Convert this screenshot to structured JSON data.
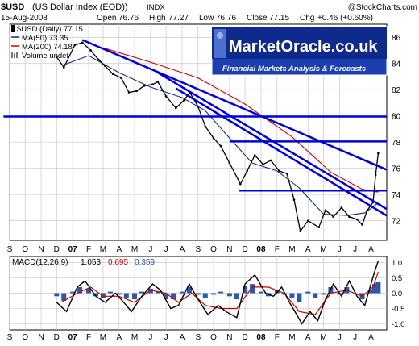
{
  "header": {
    "symbol": "$USD",
    "name": "(US Dollar Index (EOD))",
    "exchange": "INDX",
    "copyright": "@StockCharts.com",
    "date": "15-Aug-2008",
    "open_label": "Open",
    "open": "76.76",
    "high_label": "High",
    "high": "77.27",
    "low_label": "Low",
    "low": "76.76",
    "close_label": "Close",
    "close": "77.15",
    "chg_label": "Chg",
    "chg": "+0.46 (+0.60%)"
  },
  "legend": {
    "price": "$USD (Daily) 77.15",
    "ma50": "MA(50) 73.35",
    "ma200": "MA(200) 74.18",
    "volume": "Volume undef"
  },
  "logo": {
    "text": "MarketOracle.co.uk",
    "tagline": "Financial Markets Analysis & Forecasts"
  },
  "macd": {
    "label": "MACD(12,26,9)",
    "v1": "1.053",
    "v2": "0.695",
    "v3": "0.359"
  },
  "colors": {
    "price": "#000000",
    "ma50": "#1a2a80",
    "ma200": "#cc0000",
    "trendline": "#0000dd",
    "grid": "#c8c8c8",
    "histogram": "#2a5aa8",
    "signal": "#cc0000"
  },
  "chart_data": {
    "type": "line",
    "x_months": [
      "S",
      "O",
      "N",
      "D",
      "07",
      "F",
      "M",
      "A",
      "M",
      "J",
      "J",
      "A",
      "S",
      "O",
      "N",
      "D",
      "08",
      "F",
      "M",
      "A",
      "M",
      "J",
      "J",
      "A"
    ],
    "x_start": "2006-09-01",
    "y_ticks": [
      72,
      74,
      76,
      78,
      80,
      82,
      84,
      86
    ],
    "ylim": [
      70.5,
      87
    ],
    "series": [
      {
        "name": "$USD (Daily) 77.15",
        "points": [
          [
            "2006-12-01",
            84.5
          ],
          [
            "2006-12-15",
            83.7
          ],
          [
            "2007-01-05",
            85.4
          ],
          [
            "2007-01-20",
            85.6
          ],
          [
            "2007-02-05",
            85.0
          ],
          [
            "2007-02-20",
            84.3
          ],
          [
            "2007-03-05",
            83.8
          ],
          [
            "2007-03-20",
            83.2
          ],
          [
            "2007-04-05",
            82.9
          ],
          [
            "2007-04-20",
            81.8
          ],
          [
            "2007-05-05",
            81.9
          ],
          [
            "2007-05-20",
            82.3
          ],
          [
            "2007-06-05",
            82.4
          ],
          [
            "2007-06-15",
            82.6
          ],
          [
            "2007-07-01",
            81.5
          ],
          [
            "2007-07-20",
            80.6
          ],
          [
            "2007-08-05",
            81.2
          ],
          [
            "2007-08-16",
            81.8
          ],
          [
            "2007-09-01",
            80.7
          ],
          [
            "2007-09-15",
            79.2
          ],
          [
            "2007-10-01",
            78.3
          ],
          [
            "2007-10-15",
            77.7
          ],
          [
            "2007-11-01",
            76.4
          ],
          [
            "2007-11-22",
            74.8
          ],
          [
            "2007-12-05",
            75.8
          ],
          [
            "2007-12-20",
            77.0
          ],
          [
            "2008-01-05",
            76.3
          ],
          [
            "2008-01-20",
            76.6
          ],
          [
            "2008-02-05",
            75.8
          ],
          [
            "2008-02-20",
            75.6
          ],
          [
            "2008-03-05",
            73.6
          ],
          [
            "2008-03-17",
            71.2
          ],
          [
            "2008-04-01",
            72.0
          ],
          [
            "2008-04-22",
            71.5
          ],
          [
            "2008-05-05",
            72.8
          ],
          [
            "2008-05-20",
            72.3
          ],
          [
            "2008-06-05",
            73.0
          ],
          [
            "2008-06-20",
            72.3
          ],
          [
            "2008-07-05",
            72.1
          ],
          [
            "2008-07-15",
            71.7
          ],
          [
            "2008-07-25",
            72.8
          ],
          [
            "2008-08-05",
            73.4
          ],
          [
            "2008-08-10",
            75.5
          ],
          [
            "2008-08-15",
            77.15
          ]
        ]
      },
      {
        "name": "MA(50) 73.35",
        "points": [
          [
            "2006-12-15",
            83.9
          ],
          [
            "2007-02-01",
            84.6
          ],
          [
            "2007-04-01",
            83.3
          ],
          [
            "2007-06-01",
            82.2
          ],
          [
            "2007-08-01",
            81.4
          ],
          [
            "2007-09-15",
            80.4
          ],
          [
            "2007-11-01",
            78.3
          ],
          [
            "2007-12-15",
            76.4
          ],
          [
            "2008-02-01",
            75.8
          ],
          [
            "2008-03-15",
            74.5
          ],
          [
            "2008-05-01",
            72.5
          ],
          [
            "2008-06-15",
            72.4
          ],
          [
            "2008-07-20",
            72.6
          ],
          [
            "2008-08-15",
            73.35
          ]
        ]
      },
      {
        "name": "MA(200) 74.18",
        "points": [
          [
            "2007-03-01",
            85.2
          ],
          [
            "2007-06-01",
            84.1
          ],
          [
            "2007-09-01",
            82.9
          ],
          [
            "2007-12-01",
            80.9
          ],
          [
            "2008-03-01",
            78.4
          ],
          [
            "2008-05-15",
            75.7
          ],
          [
            "2008-07-15",
            74.4
          ],
          [
            "2008-08-15",
            74.18
          ]
        ]
      }
    ],
    "trendlines": [
      {
        "from": [
          "2006-08-20",
          79.95
        ],
        "to": [
          "2008-08-31",
          79.95
        ]
      },
      {
        "from": [
          "2007-11-01",
          78.05
        ],
        "to": [
          "2008-08-31",
          78.05
        ]
      },
      {
        "from": [
          "2007-11-20",
          74.3
        ],
        "to": [
          "2008-08-31",
          74.3
        ]
      },
      {
        "from": [
          "2007-01-20",
          85.8
        ],
        "to": [
          "2008-08-31",
          75.9
        ]
      },
      {
        "from": [
          "2007-06-15",
          83.3
        ],
        "to": [
          "2008-08-31",
          72.9
        ]
      },
      {
        "from": [
          "2007-07-20",
          82.1
        ],
        "to": [
          "2008-08-31",
          72.4
        ]
      }
    ]
  },
  "macd_data": {
    "type": "line",
    "y_ticks": [
      1.0,
      0.5,
      0.0,
      -0.5,
      -1.0
    ],
    "ylim": [
      -1.2,
      1.2
    ],
    "macd": [
      [
        "2006-12-01",
        -0.3
      ],
      [
        "2006-12-20",
        -0.6
      ],
      [
        "2007-01-10",
        0.2
      ],
      [
        "2007-01-25",
        0.4
      ],
      [
        "2007-02-15",
        -0.1
      ],
      [
        "2007-03-05",
        -0.3
      ],
      [
        "2007-03-25",
        0.0
      ],
      [
        "2007-04-10",
        -0.3
      ],
      [
        "2007-04-25",
        -0.6
      ],
      [
        "2007-05-15",
        -0.1
      ],
      [
        "2007-06-05",
        0.3
      ],
      [
        "2007-06-20",
        0.1
      ],
      [
        "2007-07-10",
        -0.5
      ],
      [
        "2007-07-25",
        -0.4
      ],
      [
        "2007-08-15",
        0.3
      ],
      [
        "2007-09-01",
        -0.2
      ],
      [
        "2007-09-20",
        -0.7
      ],
      [
        "2007-10-10",
        -0.4
      ],
      [
        "2007-10-25",
        -0.6
      ],
      [
        "2007-11-15",
        -0.8
      ],
      [
        "2007-12-01",
        0.3
      ],
      [
        "2007-12-20",
        0.6
      ],
      [
        "2008-01-10",
        0.0
      ],
      [
        "2008-01-25",
        -0.1
      ],
      [
        "2008-02-10",
        0.2
      ],
      [
        "2008-02-25",
        -0.3
      ],
      [
        "2008-03-10",
        -0.7
      ],
      [
        "2008-03-20",
        -1.0
      ],
      [
        "2008-04-05",
        -0.6
      ],
      [
        "2008-04-20",
        -0.9
      ],
      [
        "2008-05-05",
        -0.2
      ],
      [
        "2008-05-20",
        0.3
      ],
      [
        "2008-06-05",
        -0.1
      ],
      [
        "2008-06-20",
        0.4
      ],
      [
        "2008-07-05",
        -0.1
      ],
      [
        "2008-07-20",
        -0.4
      ],
      [
        "2008-08-01",
        0.3
      ],
      [
        "2008-08-08",
        0.7
      ],
      [
        "2008-08-15",
        1.053
      ]
    ],
    "signal": [
      [
        "2006-12-10",
        -0.3
      ],
      [
        "2007-01-10",
        0.0
      ],
      [
        "2007-02-05",
        0.2
      ],
      [
        "2007-03-01",
        -0.1
      ],
      [
        "2007-04-01",
        -0.1
      ],
      [
        "2007-05-01",
        -0.3
      ],
      [
        "2007-06-01",
        0.1
      ],
      [
        "2007-07-01",
        0.0
      ],
      [
        "2007-07-25",
        -0.3
      ],
      [
        "2007-08-20",
        0.0
      ],
      [
        "2007-09-15",
        -0.4
      ],
      [
        "2007-10-15",
        -0.5
      ],
      [
        "2007-11-15",
        -0.5
      ],
      [
        "2007-12-15",
        0.2
      ],
      [
        "2008-01-15",
        0.2
      ],
      [
        "2008-02-15",
        0.0
      ],
      [
        "2008-03-15",
        -0.6
      ],
      [
        "2008-04-15",
        -0.7
      ],
      [
        "2008-05-15",
        0.0
      ],
      [
        "2008-06-15",
        0.1
      ],
      [
        "2008-07-15",
        -0.1
      ],
      [
        "2008-08-05",
        0.2
      ],
      [
        "2008-08-15",
        0.695
      ]
    ],
    "histogram": [
      [
        "2006-12-01",
        -0.1
      ],
      [
        "2006-12-15",
        -0.25
      ],
      [
        "2007-01-01",
        0.05
      ],
      [
        "2007-01-15",
        0.2
      ],
      [
        "2007-02-01",
        0.15
      ],
      [
        "2007-02-15",
        -0.1
      ],
      [
        "2007-03-01",
        -0.15
      ],
      [
        "2007-03-15",
        0.05
      ],
      [
        "2007-04-01",
        -0.05
      ],
      [
        "2007-04-15",
        -0.15
      ],
      [
        "2007-05-01",
        -0.2
      ],
      [
        "2007-05-15",
        0.05
      ],
      [
        "2007-06-01",
        0.15
      ],
      [
        "2007-06-15",
        0.05
      ],
      [
        "2007-07-01",
        -0.2
      ],
      [
        "2007-07-15",
        -0.2
      ],
      [
        "2007-08-01",
        0.05
      ],
      [
        "2007-08-15",
        0.2
      ],
      [
        "2007-09-01",
        -0.05
      ],
      [
        "2007-09-15",
        -0.15
      ],
      [
        "2007-10-01",
        -0.05
      ],
      [
        "2007-10-15",
        0.05
      ],
      [
        "2007-11-01",
        -0.1
      ],
      [
        "2007-11-15",
        -0.2
      ],
      [
        "2007-12-01",
        0.25
      ],
      [
        "2007-12-15",
        0.3
      ],
      [
        "2008-01-01",
        0.05
      ],
      [
        "2008-01-15",
        -0.1
      ],
      [
        "2008-02-01",
        0.1
      ],
      [
        "2008-02-15",
        -0.05
      ],
      [
        "2008-03-01",
        -0.15
      ],
      [
        "2008-03-15",
        -0.3
      ],
      [
        "2008-04-01",
        0.05
      ],
      [
        "2008-04-15",
        -0.15
      ],
      [
        "2008-05-01",
        -0.05
      ],
      [
        "2008-05-15",
        0.2
      ],
      [
        "2008-06-01",
        -0.05
      ],
      [
        "2008-06-15",
        0.2
      ],
      [
        "2008-07-01",
        0.0
      ],
      [
        "2008-07-15",
        -0.2
      ],
      [
        "2008-08-01",
        0.1
      ],
      [
        "2008-08-08",
        0.3
      ],
      [
        "2008-08-15",
        0.359
      ]
    ]
  }
}
